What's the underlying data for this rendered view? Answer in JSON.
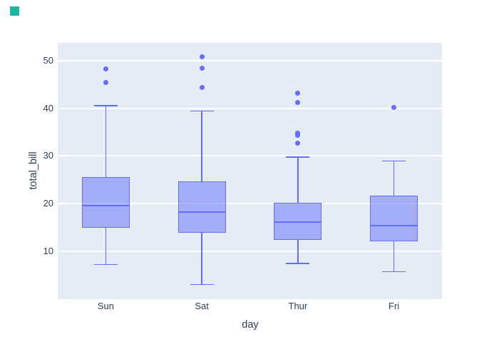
{
  "logo": {
    "color": "#17b8a6"
  },
  "chart_data": {
    "type": "box",
    "title": "",
    "xlabel": "day",
    "ylabel": "total_bill",
    "categories": [
      "Sun",
      "Sat",
      "Thur",
      "Fri"
    ],
    "yticks": [
      10,
      20,
      30,
      40,
      50
    ],
    "ylim": [
      0,
      53.7
    ],
    "grid": true,
    "legend": false,
    "series": [
      {
        "name": "Sun",
        "lo_whisker": 7.25,
        "q1": 14.99,
        "median": 19.63,
        "q3": 25.6,
        "hi_whisker": 40.55,
        "outliers": [
          45.35,
          48.17
        ]
      },
      {
        "name": "Sat",
        "lo_whisker": 3.07,
        "q1": 13.91,
        "median": 18.24,
        "q3": 24.74,
        "hi_whisker": 39.42,
        "outliers": [
          44.3,
          48.33,
          50.81
        ]
      },
      {
        "name": "Thur",
        "lo_whisker": 7.51,
        "q1": 12.44,
        "median": 16.2,
        "q3": 20.16,
        "hi_whisker": 29.8,
        "outliers": [
          32.68,
          34.3,
          34.83,
          41.19,
          43.11
        ]
      },
      {
        "name": "Fri",
        "lo_whisker": 5.75,
        "q1": 12.09,
        "median": 15.38,
        "q3": 21.75,
        "hi_whisker": 28.97,
        "outliers": [
          40.17
        ]
      }
    ],
    "colors": {
      "box_line": "#636efa",
      "box_fill": "rgba(99,110,250,0.5)",
      "plot_bg": "#e5ecf6",
      "gridline": "#ffffff",
      "font": "#2a3f5f"
    }
  }
}
